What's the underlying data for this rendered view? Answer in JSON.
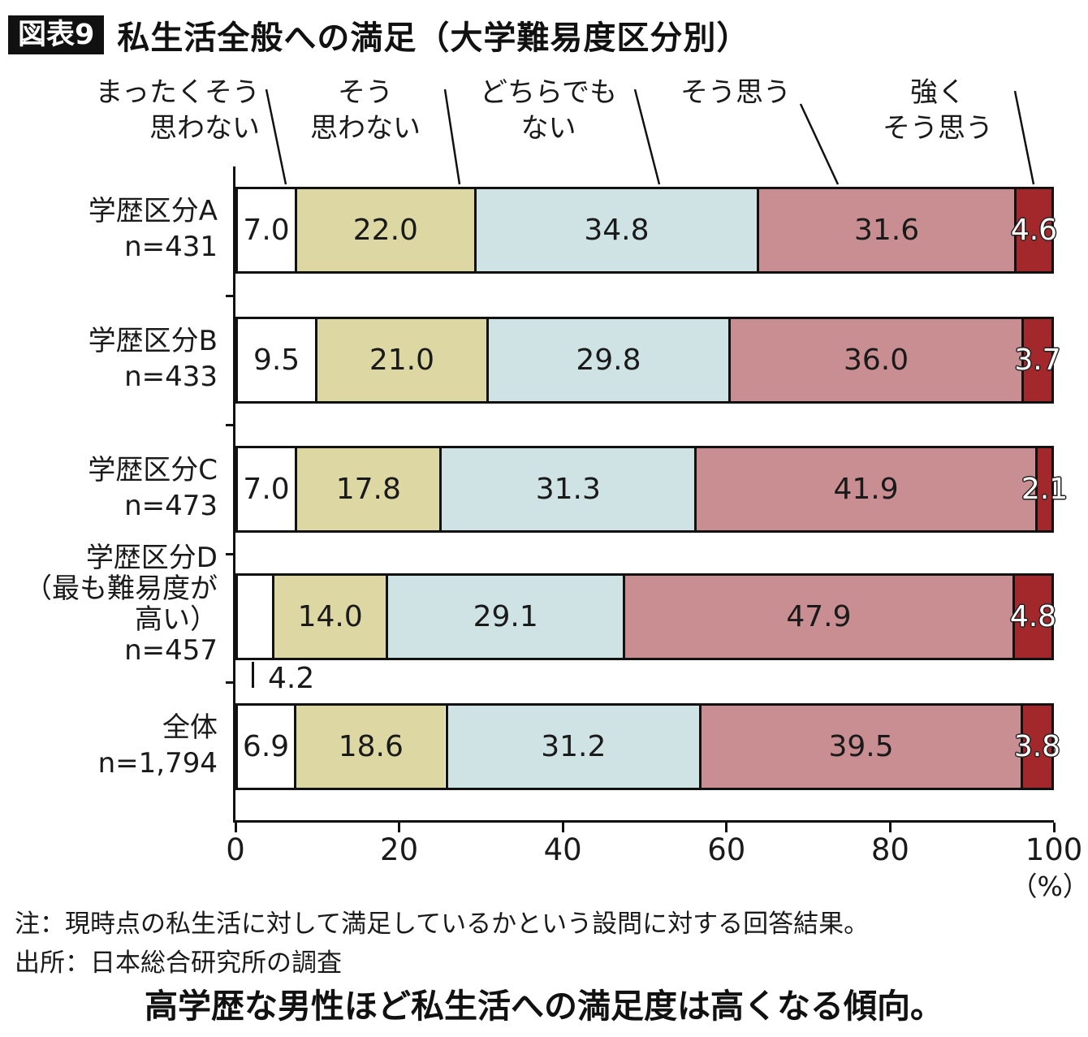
{
  "header": {
    "badge": "図表9",
    "title": "私生活全般への満足（大学難易度区分別）"
  },
  "chart_data": {
    "type": "bar",
    "variant": "stacked-horizontal",
    "title": "私生活全般への満足（大学難易度区分別）",
    "xlim": [
      0,
      100
    ],
    "xticks": [
      0,
      20,
      40,
      60,
      80,
      100
    ],
    "x_unit_label": "（%）",
    "legend": [
      {
        "label": "まったくそう\n思わない",
        "color": "#ffffff"
      },
      {
        "label": "そう\n思わない",
        "color": "#ddd8a3"
      },
      {
        "label": "どちらでも\nない",
        "color": "#cfe3e4"
      },
      {
        "label": "そう思う",
        "color": "#c98e91"
      },
      {
        "label": "強く\nそう思う",
        "color": "#a3282b"
      }
    ],
    "rows": [
      {
        "label_lines": [
          "学歴区分A",
          "n=431"
        ],
        "values": [
          7.0,
          22.0,
          34.8,
          31.6,
          4.6
        ]
      },
      {
        "label_lines": [
          "学歴区分B",
          "n=433"
        ],
        "values": [
          9.5,
          21.0,
          29.8,
          36.0,
          3.7
        ]
      },
      {
        "label_lines": [
          "学歴区分C",
          "n=473"
        ],
        "values": [
          7.0,
          17.8,
          31.3,
          41.9,
          2.1
        ]
      },
      {
        "label_lines": [
          "学歴区分D",
          "（最も難易度が",
          "高い）",
          "n=457"
        ],
        "values": [
          4.2,
          14.0,
          29.1,
          47.9,
          4.8
        ],
        "first_label_outside": true
      },
      {
        "label_lines": [
          "全体",
          "n=1,794"
        ],
        "values": [
          6.9,
          18.6,
          31.2,
          39.5,
          3.8
        ]
      }
    ]
  },
  "note": "注：現時点の私生活に対して満足しているかという設問に対する回答結果。",
  "source": "出所：日本総合研究所の調査",
  "caption": "高学歴な男性ほど私生活への満足度は高くなる傾向。"
}
